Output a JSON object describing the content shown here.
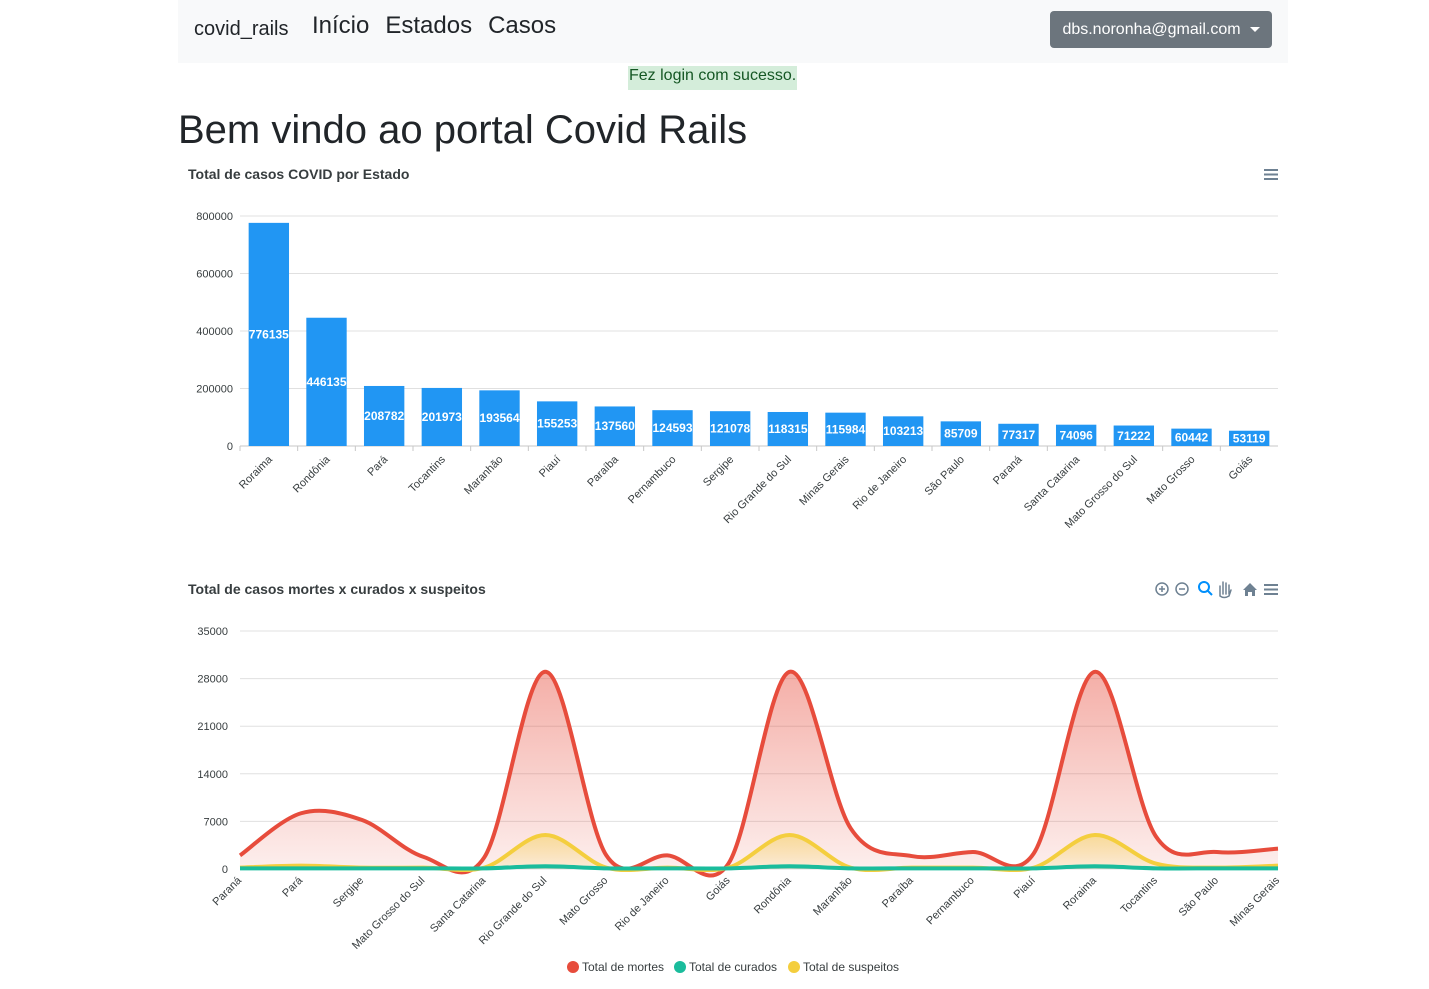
{
  "navbar": {
    "brand": "covid_rails",
    "links": [
      "Início",
      "Estados",
      "Casos"
    ],
    "user": "dbs.noronha@gmail.com"
  },
  "flash": "Fez login com sucesso.",
  "page_title": "Bem vindo ao portal Covid Rails",
  "colors": {
    "bar": "#2196f3",
    "mortes": "#e74c3c",
    "curados": "#1abc9c",
    "suspeitos": "#f4ce3e",
    "grid": "#e0e0e0"
  },
  "chart_data": [
    {
      "type": "bar",
      "title": "Total de casos COVID por Estado",
      "categories": [
        "Roraima",
        "Rondônia",
        "Pará",
        "Tocantins",
        "Maranhão",
        "Piauí",
        "Paraíba",
        "Pernambuco",
        "Sergipe",
        "Rio Grande do Sul",
        "Minas Gerais",
        "Rio de Janeiro",
        "São Paulo",
        "Paraná",
        "Santa Catarina",
        "Mato Grosso do Sul",
        "Mato Grosso",
        "Goiás"
      ],
      "values": [
        776135,
        446135,
        208782,
        201973,
        193564,
        155253,
        137560,
        124593,
        121078,
        118315,
        115984,
        103213,
        85709,
        77317,
        74096,
        71222,
        60442,
        53119
      ],
      "yticks": [
        "0",
        "200000",
        "400000",
        "600000",
        "800000"
      ],
      "ylim": [
        0,
        800000
      ],
      "data_labels": true,
      "grid": true
    },
    {
      "type": "area",
      "title": "Total de casos mortes x curados x suspeitos",
      "categories": [
        "Paraná",
        "Pará",
        "Sergipe",
        "Mato Grosso do Sul",
        "Santa Catarina",
        "Rio Grande do Sul",
        "Mato Grosso",
        "Rio de Janeiro",
        "Goiás",
        "Rondônia",
        "Maranhão",
        "Paraíba",
        "Pernambuco",
        "Piauí",
        "Roraima",
        "Tocantins",
        "São Paulo",
        "Minas Gerais"
      ],
      "series": [
        {
          "name": "Total de mortes",
          "values": [
            2000,
            8200,
            7200,
            1800,
            1700,
            29000,
            2000,
            2000,
            800,
            29000,
            6000,
            1900,
            2500,
            2300,
            29000,
            4800,
            2500,
            3000
          ]
        },
        {
          "name": "Total de curados",
          "values": [
            100,
            100,
            100,
            100,
            100,
            400,
            100,
            100,
            100,
            400,
            100,
            100,
            100,
            100,
            400,
            100,
            100,
            100
          ]
        },
        {
          "name": "Total de suspeitos",
          "values": [
            200,
            500,
            200,
            200,
            200,
            5000,
            200,
            200,
            200,
            5000,
            200,
            200,
            200,
            200,
            5000,
            800,
            200,
            500
          ]
        }
      ],
      "yticks": [
        "0",
        "7000",
        "14000",
        "21000",
        "28000",
        "35000"
      ],
      "ylim": [
        0,
        35000
      ],
      "legend": "bottom",
      "grid": true
    }
  ]
}
